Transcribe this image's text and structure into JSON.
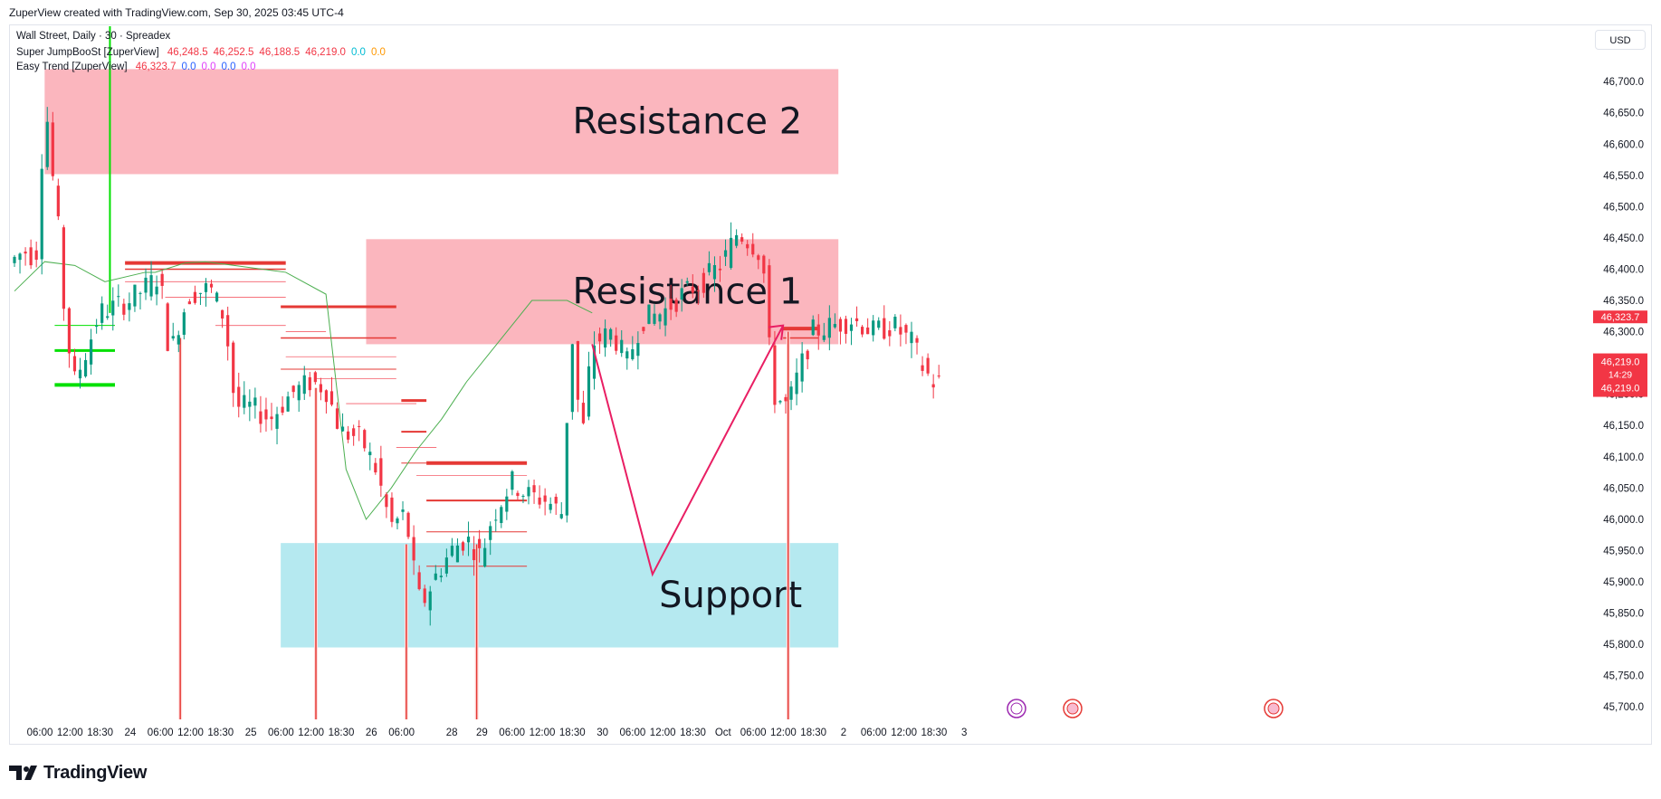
{
  "header": {
    "title": "ZuperView created with TradingView.com, Sep 30, 2025 03:45 UTC-4"
  },
  "legend": {
    "symbol_line": "Wall Street, Daily · 30 · Spreadex",
    "indicator1": {
      "name": "Super JumpBooSt [ZuperView]",
      "values": [
        "46,248.5",
        "46,252.5",
        "46,188.5",
        "46,219.0",
        "0.0",
        "0.0"
      ],
      "colors": [
        "#f23645",
        "#f23645",
        "#f23645",
        "#f23645",
        "#00bcd4",
        "#ff9800"
      ]
    },
    "indicator2": {
      "name": "Easy Trend [ZuperView]",
      "values": [
        "46,323.7",
        "0.0",
        "0.0",
        "0.0",
        "0.0"
      ],
      "colors": [
        "#f23645",
        "#2962ff",
        "#e040fb",
        "#2962ff",
        "#e040fb"
      ]
    }
  },
  "currency": "USD",
  "footer": {
    "brand": "TradingView"
  },
  "chart_data": {
    "type": "candlestick",
    "y_axis": {
      "range": [
        45680,
        46790
      ],
      "ticks": [
        46700,
        46650,
        46600,
        46550,
        46500,
        46450,
        46400,
        46350,
        46300,
        46250,
        46200,
        46150,
        46100,
        46050,
        46000,
        45950,
        45900,
        45850,
        45800,
        45750,
        45700
      ],
      "tick_labels": [
        "46,700.0",
        "46,650.0",
        "46,600.0",
        "46,550.0",
        "46,500.0",
        "46,450.0",
        "46,400.0",
        "46,350.0",
        "46,300.0",
        "46,250.0",
        "46,200.0",
        "46,150.0",
        "46,100.0",
        "46,050.0",
        "46,000.0",
        "45,950.0",
        "45,900.0",
        "45,850.0",
        "45,800.0",
        "45,750.0",
        "45,700.0"
      ]
    },
    "x_axis": {
      "tick_labels": [
        "06:00",
        "12:00",
        "18:30",
        "24",
        "06:00",
        "12:00",
        "18:30",
        "25",
        "06:00",
        "12:00",
        "18:30",
        "26",
        "06:00",
        "28",
        "29",
        "06:00",
        "12:00",
        "18:30",
        "30",
        "06:00",
        "12:00",
        "18:30",
        "Oct",
        "06:00",
        "12:00",
        "18:30",
        "2",
        "06:00",
        "12:00",
        "18:30",
        "3"
      ],
      "tick_index": [
        0,
        6,
        12,
        18,
        24,
        30,
        36,
        42,
        48,
        54,
        60,
        66,
        72,
        82,
        88,
        94,
        100,
        106,
        112,
        118,
        124,
        130,
        136,
        142,
        148,
        154,
        160,
        166,
        172,
        178,
        184
      ],
      "bar_count": 185
    },
    "price_labels": [
      {
        "value": "46,323.7",
        "price": 46323.7
      },
      {
        "value": "46,219.0",
        "countdown": "14:29",
        "price": 46219.0
      },
      {
        "value": "46,219.0",
        "price": 46219.0
      }
    ],
    "zones": [
      {
        "label": "Resistance 2",
        "top": 46720,
        "bottom": 46552,
        "start_index": 6,
        "end_index": 164,
        "color": "#fbb6be"
      },
      {
        "label": "Resistance 1",
        "top": 46448,
        "bottom": 46280,
        "start_index": 70,
        "end_index": 164,
        "color": "#fbb6be"
      },
      {
        "label": "Support",
        "top": 45962,
        "bottom": 45795,
        "start_index": 53,
        "end_index": 164,
        "color": "#b5e9f0"
      }
    ],
    "projection": {
      "points": [
        [
          115,
          46280
        ],
        [
          127,
          45912
        ],
        [
          153,
          46310
        ]
      ],
      "color": "#e91e63"
    },
    "trend_line": {
      "color": "#4caf50",
      "points": [
        [
          0,
          46365
        ],
        [
          6,
          46412
        ],
        [
          12,
          46406
        ],
        [
          18,
          46380
        ],
        [
          26,
          46395
        ],
        [
          28,
          46395
        ],
        [
          34,
          46410
        ],
        [
          38,
          46412
        ],
        [
          54,
          46395
        ],
        [
          62,
          46360
        ],
        [
          66,
          46080
        ],
        [
          70,
          46000
        ],
        [
          75,
          46050
        ],
        [
          80,
          46110
        ],
        [
          85,
          46160
        ],
        [
          90,
          46220
        ],
        [
          95,
          46270
        ],
        [
          100,
          46320
        ],
        [
          103,
          46350
        ],
        [
          110,
          46350
        ],
        [
          115,
          46330
        ]
      ]
    },
    "candles": []
  }
}
